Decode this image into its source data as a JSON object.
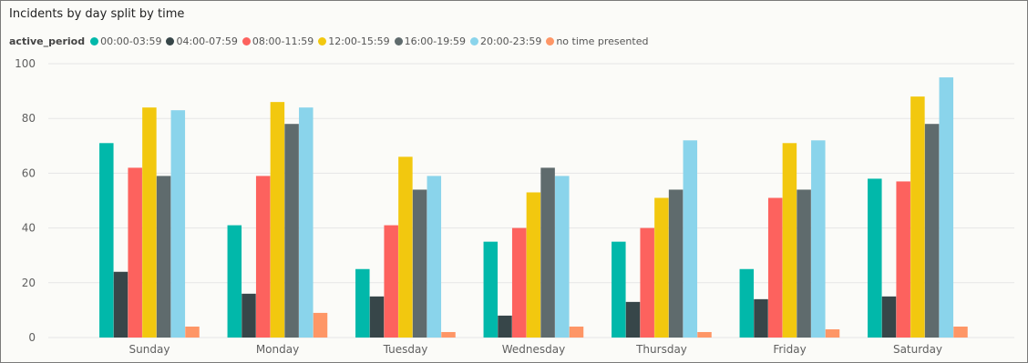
{
  "chart_data": {
    "type": "bar",
    "title": "Incidents by day split by time",
    "legend_title": "active_period",
    "legend_position": "top-left",
    "categories": [
      "Sunday",
      "Monday",
      "Tuesday",
      "Wednesday",
      "Thursday",
      "Friday",
      "Saturday"
    ],
    "series": [
      {
        "name": "00:00-03:59",
        "color": "#01b8aa",
        "values": [
          71,
          41,
          25,
          35,
          35,
          25,
          58
        ]
      },
      {
        "name": "04:00-07:59",
        "color": "#374649",
        "values": [
          24,
          16,
          15,
          8,
          13,
          14,
          15
        ]
      },
      {
        "name": "08:00-11:59",
        "color": "#fd625e",
        "values": [
          62,
          59,
          41,
          40,
          40,
          51,
          57
        ]
      },
      {
        "name": "12:00-15:59",
        "color": "#f2c80f",
        "values": [
          84,
          86,
          66,
          53,
          51,
          71,
          88
        ]
      },
      {
        "name": "16:00-19:59",
        "color": "#5f6b6d",
        "values": [
          59,
          78,
          54,
          62,
          54,
          54,
          78
        ]
      },
      {
        "name": "20:00-23:59",
        "color": "#8ad4eb",
        "values": [
          83,
          84,
          59,
          59,
          72,
          72,
          95
        ]
      },
      {
        "name": "no time presented",
        "color": "#fe9666",
        "values": [
          4,
          9,
          2,
          4,
          2,
          3,
          4
        ]
      }
    ],
    "ylim": [
      0,
      100
    ],
    "yticks": [
      0,
      20,
      40,
      60,
      80,
      100
    ],
    "xlabel": "",
    "ylabel": "",
    "grid": true
  }
}
